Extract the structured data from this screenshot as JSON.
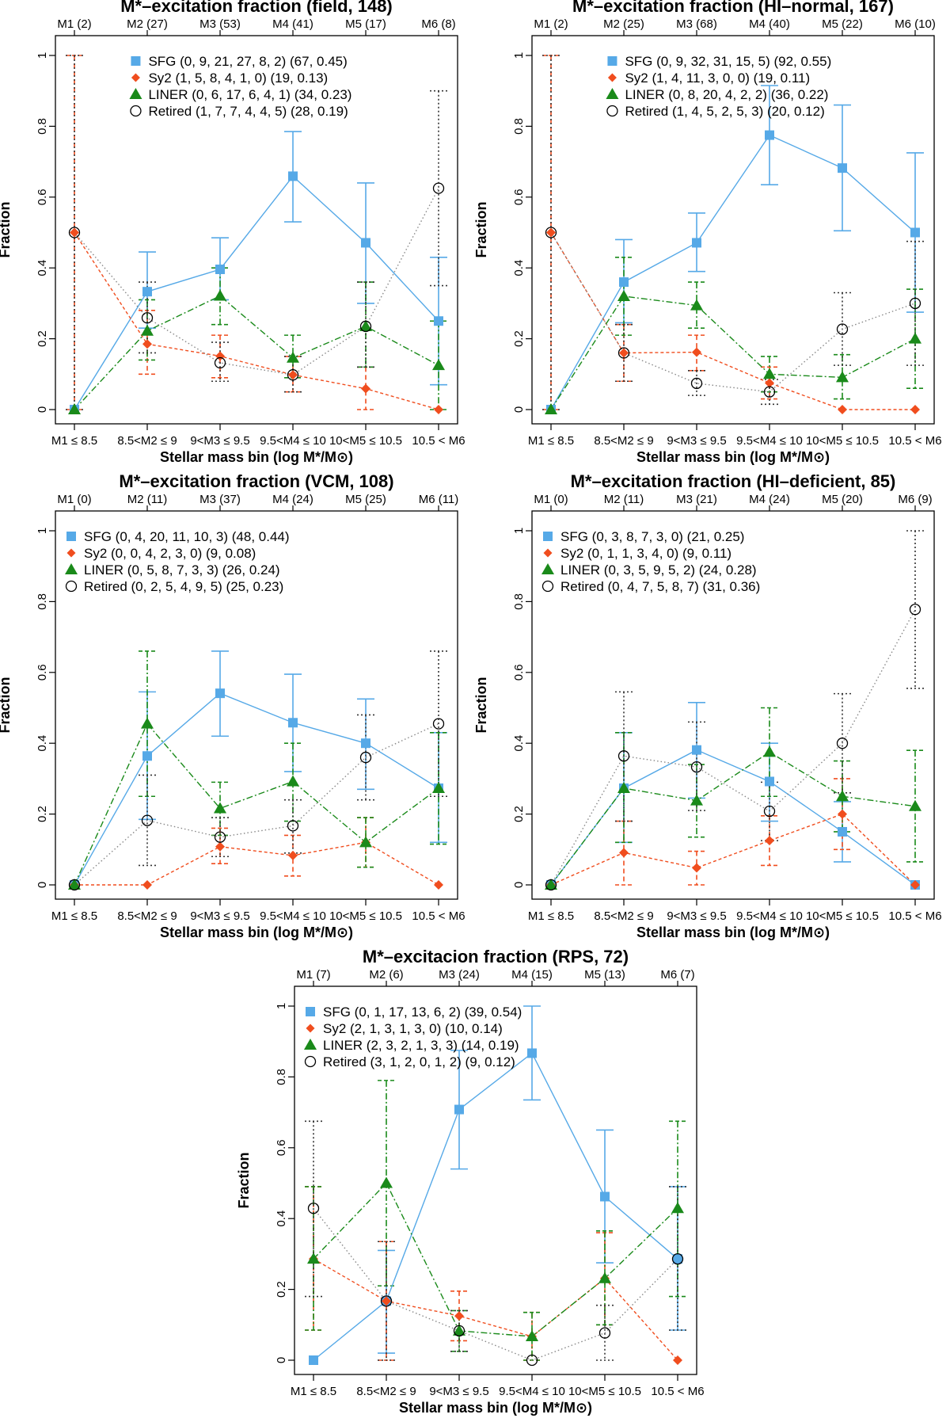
{
  "figure_title": "Stellar mass vs. excitation fraction panels",
  "colors": {
    "SFG": "#56a9e7",
    "Sy2": "#f04d1e",
    "LINER": "#1a8a1a",
    "Retired": "#333333",
    "frame": "#000000"
  },
  "chart_data": [
    {
      "type": "line",
      "title": "M*–excitation fraction (field, 148)",
      "xlabel": "Stellar mass bin (log M*/M⊙)",
      "ylabel": "Fraction",
      "ylim": [
        0,
        1
      ],
      "categories": [
        "M1 ≤ 8.5",
        "8.5<M2 ≤ 9",
        "9<M3 ≤ 9.5",
        "9.5<M4 ≤ 10",
        "10<M5 ≤ 10.5",
        "10.5 < M6"
      ],
      "top_labels": [
        "M1 (2)",
        "M2 (27)",
        "M3 (53)",
        "M4 (41)",
        "M5 (17)",
        "M6 (8)"
      ],
      "legend_position": "top",
      "series": [
        {
          "name": "SFG",
          "legend": "SFG (0, 9, 21, 27, 8, 2) (67, 0.45)",
          "values": [
            0,
            0.333,
            0.396,
            0.659,
            0.471,
            0.25
          ],
          "lo": [
            0,
            0.23,
            0.31,
            0.53,
            0.3,
            0.07
          ],
          "hi": [
            0,
            0.445,
            0.485,
            0.785,
            0.64,
            0.43
          ]
        },
        {
          "name": "Sy2",
          "legend": "Sy2 (1, 5, 8, 4, 1, 0) (19, 0.13)",
          "values": [
            0.5,
            0.185,
            0.151,
            0.098,
            0.059,
            0
          ],
          "lo": [
            0,
            0.1,
            0.09,
            0.05,
            0,
            0
          ],
          "hi": [
            1,
            0.28,
            0.21,
            0.15,
            0.12,
            0
          ]
        },
        {
          "name": "LINER",
          "legend": "LINER (0, 6, 17, 6, 4, 1) (34, 0.23)",
          "values": [
            0,
            0.222,
            0.321,
            0.146,
            0.235,
            0.125
          ],
          "lo": [
            0,
            0.14,
            0.24,
            0.09,
            0.12,
            0
          ],
          "hi": [
            0,
            0.31,
            0.4,
            0.21,
            0.36,
            0.25
          ]
        },
        {
          "name": "Retired",
          "legend": "Retired (1, 7, 7, 4, 4, 5) (28, 0.19)",
          "values": [
            0.5,
            0.259,
            0.132,
            0.098,
            0.235,
            0.625
          ],
          "lo": [
            0,
            0.16,
            0.08,
            0.05,
            0.12,
            0.35
          ],
          "hi": [
            1,
            0.36,
            0.19,
            0.15,
            0.36,
            0.9
          ]
        }
      ]
    },
    {
      "type": "line",
      "title": "M*–excitation fraction (HI–normal, 167)",
      "xlabel": "Stellar mass bin (log M*/M⊙)",
      "ylabel": "Fraction",
      "ylim": [
        0,
        1
      ],
      "categories": [
        "M1 ≤ 8.5",
        "8.5<M2 ≤ 9",
        "9<M3 ≤ 9.5",
        "9.5<M4 ≤ 10",
        "10<M5 ≤ 10.5",
        "10.5 < M6"
      ],
      "top_labels": [
        "M1 (2)",
        "M2 (25)",
        "M3 (68)",
        "M4 (40)",
        "M5 (22)",
        "M6 (10)"
      ],
      "legend_position": "top",
      "series": [
        {
          "name": "SFG",
          "legend": "SFG (0, 9, 32, 31, 15, 5) (92, 0.55)",
          "values": [
            0,
            0.36,
            0.471,
            0.775,
            0.682,
            0.5
          ],
          "lo": [
            0,
            0.245,
            0.39,
            0.635,
            0.505,
            0.275
          ],
          "hi": [
            0,
            0.48,
            0.555,
            0.915,
            0.86,
            0.725
          ]
        },
        {
          "name": "Sy2",
          "legend": "Sy2 (1, 4, 11, 3, 0, 0) (19, 0.11)",
          "values": [
            0.5,
            0.16,
            0.162,
            0.075,
            0,
            0
          ],
          "lo": [
            0,
            0.08,
            0.11,
            0.03,
            0,
            0
          ],
          "hi": [
            1,
            0.24,
            0.21,
            0.12,
            0,
            0
          ]
        },
        {
          "name": "LINER",
          "legend": "LINER (0, 8, 20, 4, 2, 2) (36, 0.22)",
          "values": [
            0,
            0.32,
            0.294,
            0.1,
            0.091,
            0.2
          ],
          "lo": [
            0,
            0.21,
            0.23,
            0.05,
            0.03,
            0.06
          ],
          "hi": [
            0,
            0.43,
            0.36,
            0.15,
            0.155,
            0.34
          ]
        },
        {
          "name": "Retired",
          "legend": "Retired (1, 4, 5, 2, 5, 3) (20, 0.12)",
          "values": [
            0.5,
            0.16,
            0.074,
            0.05,
            0.227,
            0.3
          ],
          "lo": [
            0,
            0.08,
            0.04,
            0.015,
            0.125,
            0.125
          ],
          "hi": [
            1,
            0.24,
            0.11,
            0.085,
            0.33,
            0.475
          ]
        }
      ]
    },
    {
      "type": "line",
      "title": "M*–excitation fraction (VCM, 108)",
      "xlabel": "Stellar mass bin (log M*/M⊙)",
      "ylabel": "Fraction",
      "ylim": [
        0,
        1
      ],
      "categories": [
        "M1 ≤ 8.5",
        "8.5<M2 ≤ 9",
        "9<M3 ≤ 9.5",
        "9.5<M4 ≤ 10",
        "10<M5 ≤ 10.5",
        "10.5 < M6"
      ],
      "top_labels": [
        "M1 (0)",
        "M2 (11)",
        "M3 (37)",
        "M4 (24)",
        "M5 (25)",
        "M6 (11)"
      ],
      "legend_position": "top-left",
      "series": [
        {
          "name": "SFG",
          "legend": "SFG (0, 4, 20, 11, 10, 3) (48, 0.44)",
          "values": [
            0,
            0.364,
            0.541,
            0.458,
            0.4,
            0.273
          ],
          "lo": [
            0,
            0.185,
            0.42,
            0.32,
            0.27,
            0.12
          ],
          "hi": [
            0,
            0.545,
            0.66,
            0.595,
            0.525,
            0.43
          ]
        },
        {
          "name": "Sy2",
          "legend": "Sy2 (0, 0, 4, 2, 3, 0) (9, 0.08)",
          "values": [
            0,
            0,
            0.108,
            0.083,
            0.12,
            0
          ],
          "lo": [
            0,
            0,
            0.06,
            0.025,
            0.05,
            0
          ],
          "hi": [
            0,
            0,
            0.16,
            0.14,
            0.19,
            0
          ]
        },
        {
          "name": "LINER",
          "legend": "LINER (0, 5, 8, 7, 3, 3) (26, 0.24)",
          "values": [
            0,
            0.455,
            0.216,
            0.292,
            0.12,
            0.273
          ],
          "lo": [
            0,
            0.25,
            0.14,
            0.18,
            0.05,
            0.115
          ],
          "hi": [
            0,
            0.66,
            0.29,
            0.4,
            0.19,
            0.43
          ]
        },
        {
          "name": "Retired",
          "legend": "Retired (0, 2, 5, 4, 9, 5) (25, 0.23)",
          "values": [
            0,
            0.182,
            0.135,
            0.167,
            0.36,
            0.455
          ],
          "lo": [
            0,
            0.055,
            0.08,
            0.09,
            0.24,
            0.25
          ],
          "hi": [
            0,
            0.31,
            0.19,
            0.24,
            0.48,
            0.66
          ]
        }
      ]
    },
    {
      "type": "line",
      "title": "M*–excitation fraction (HI–deficient, 85)",
      "xlabel": "Stellar mass bin (log M*/M⊙)",
      "ylabel": "Fraction",
      "ylim": [
        0,
        1
      ],
      "categories": [
        "M1 ≤ 8.5",
        "8.5<M2 ≤ 9",
        "9<M3 ≤ 9.5",
        "9.5<M4 ≤ 10",
        "10<M5 ≤ 10.5",
        "10.5 < M6"
      ],
      "top_labels": [
        "M1 (0)",
        "M2 (11)",
        "M3 (21)",
        "M4 (24)",
        "M5 (20)",
        "M6 (9)"
      ],
      "legend_position": "top-left",
      "series": [
        {
          "name": "SFG",
          "legend": "SFG (0, 3, 8, 7, 3, 0) (21, 0.25)",
          "values": [
            0,
            0.273,
            0.381,
            0.292,
            0.15,
            0
          ],
          "lo": [
            0,
            0.12,
            0.245,
            0.18,
            0.065,
            0
          ],
          "hi": [
            0,
            0.43,
            0.515,
            0.4,
            0.235,
            0
          ]
        },
        {
          "name": "Sy2",
          "legend": "Sy2 (0, 1, 1, 3, 4, 0) (9, 0.11)",
          "values": [
            0,
            0.091,
            0.048,
            0.125,
            0.2,
            0
          ],
          "lo": [
            0,
            0,
            0,
            0.055,
            0.1,
            0
          ],
          "hi": [
            0,
            0.18,
            0.095,
            0.195,
            0.3,
            0
          ]
        },
        {
          "name": "LINER",
          "legend": "LINER (0, 3, 5, 9, 5, 2) (24, 0.28)",
          "values": [
            0,
            0.273,
            0.238,
            0.375,
            0.25,
            0.222
          ],
          "lo": [
            0,
            0.12,
            0.135,
            0.25,
            0.15,
            0.065
          ],
          "hi": [
            0,
            0.43,
            0.34,
            0.5,
            0.35,
            0.38
          ]
        },
        {
          "name": "Retired",
          "legend": "Retired (0, 4, 7, 5, 8, 7) (31, 0.36)",
          "values": [
            0,
            0.364,
            0.333,
            0.208,
            0.4,
            0.778
          ],
          "lo": [
            0,
            0.18,
            0.21,
            0.125,
            0.26,
            0.555
          ],
          "hi": [
            0,
            0.545,
            0.46,
            0.29,
            0.54,
            1
          ]
        }
      ]
    },
    {
      "type": "line",
      "title": "M*–excitacion fraction (RPS, 72)",
      "xlabel": "Stellar mass bin (log M*/M⊙)",
      "ylabel": "Fraction",
      "ylim": [
        0,
        1
      ],
      "categories": [
        "M1 ≤ 8.5",
        "8.5<M2 ≤ 9",
        "9<M3 ≤ 9.5",
        "9.5<M4 ≤ 10",
        "10<M5 ≤ 10.5",
        "10.5 < M6"
      ],
      "top_labels": [
        "M1 (7)",
        "M2 (6)",
        "M3 (24)",
        "M4 (15)",
        "M5 (13)",
        "M6 (7)"
      ],
      "legend_position": "top-left",
      "series": [
        {
          "name": "SFG",
          "legend": "SFG (0, 1, 17, 13, 6, 2) (39, 0.54)",
          "values": [
            0,
            0.167,
            0.708,
            0.867,
            0.462,
            0.286
          ],
          "lo": [
            0,
            0.02,
            0.54,
            0.735,
            0.275,
            0.085
          ],
          "hi": [
            0,
            0.31,
            0.875,
            1,
            0.65,
            0.49
          ]
        },
        {
          "name": "Sy2",
          "legend": "Sy2 (2, 1, 3, 1, 3, 0) (10, 0.14)",
          "values": [
            0.286,
            0.167,
            0.125,
            0.067,
            0.231,
            0
          ],
          "lo": [
            0.085,
            0,
            0.055,
            0,
            0.1,
            0
          ],
          "hi": [
            0.49,
            0.335,
            0.195,
            0.135,
            0.36,
            0
          ]
        },
        {
          "name": "LINER",
          "legend": "LINER (2, 3, 2, 1, 3, 3) (14, 0.19)",
          "values": [
            0.286,
            0.5,
            0.083,
            0.067,
            0.231,
            0.429
          ],
          "lo": [
            0.085,
            0.21,
            0.025,
            0,
            0.1,
            0.18
          ],
          "hi": [
            0.49,
            0.79,
            0.14,
            0.135,
            0.365,
            0.675
          ]
        },
        {
          "name": "Retired",
          "legend": "Retired (3, 1, 2, 0, 1, 2) (9, 0.12)",
          "values": [
            0.429,
            0.167,
            0.083,
            0,
            0.077,
            0.286
          ],
          "lo": [
            0.18,
            0,
            0.025,
            0,
            0,
            0.085
          ],
          "hi": [
            0.675,
            0.335,
            0.14,
            0,
            0.155,
            0.49
          ]
        }
      ]
    }
  ]
}
